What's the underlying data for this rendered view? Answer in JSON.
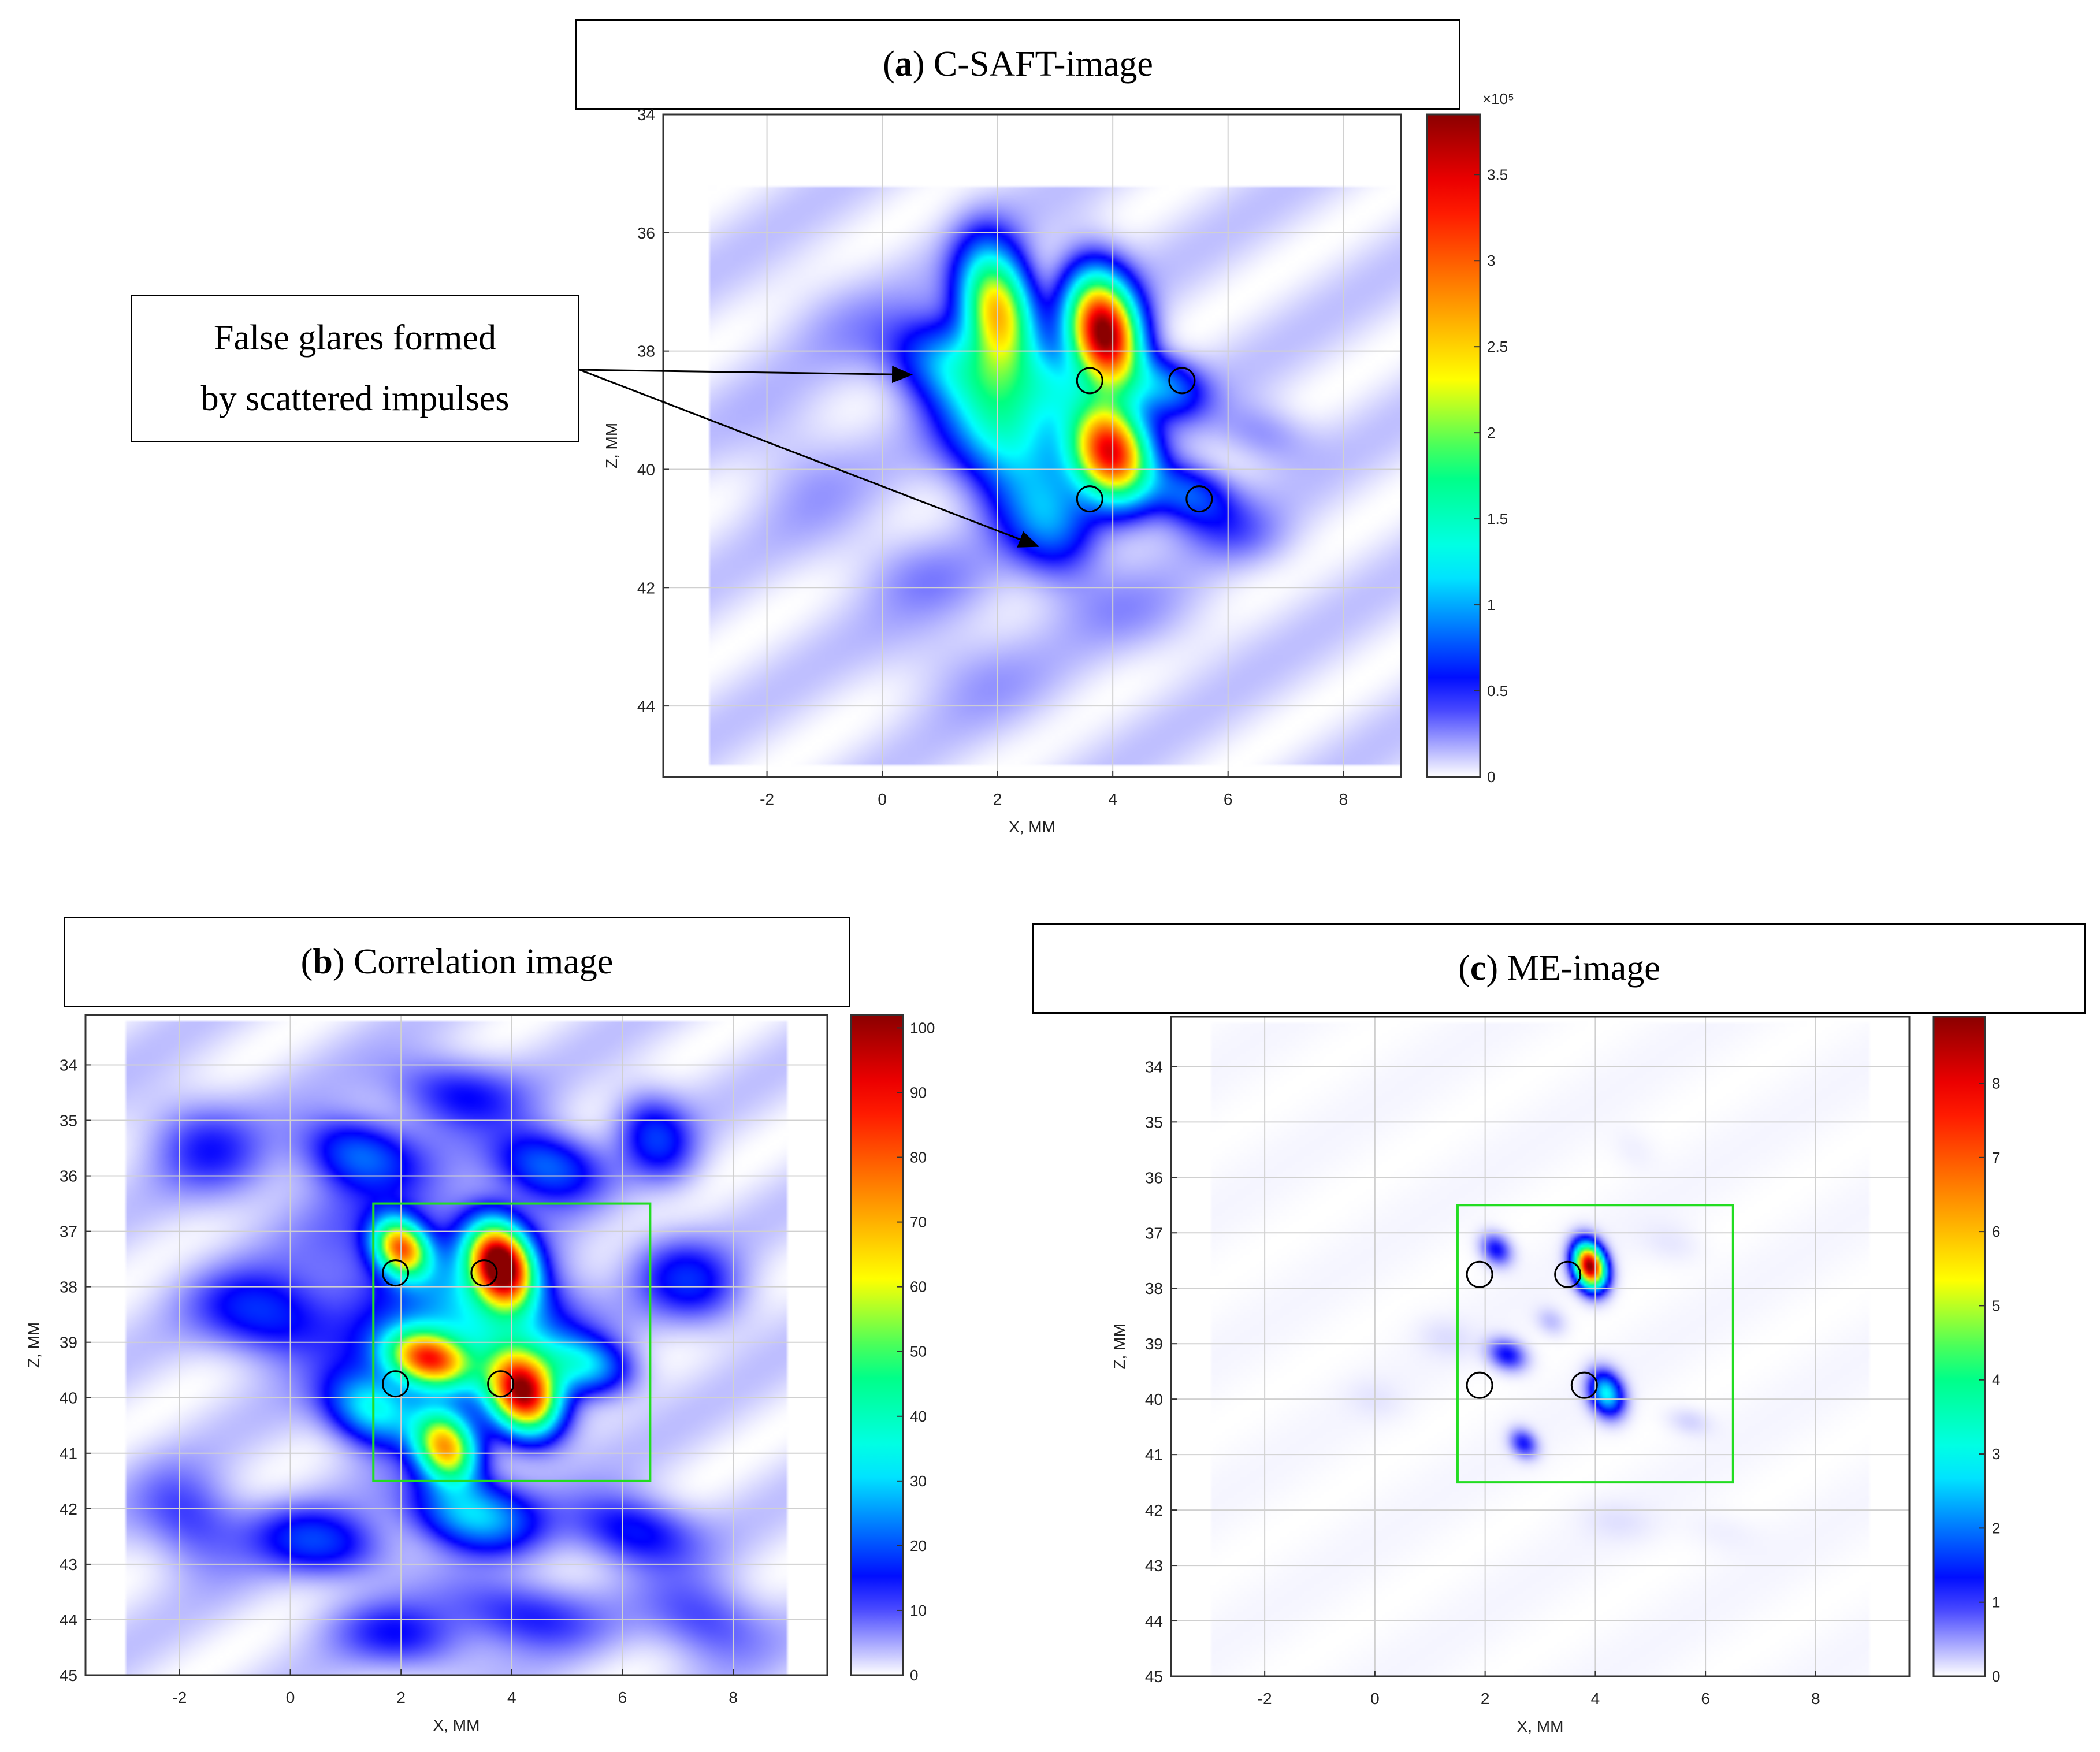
{
  "colors": {
    "grid": "#d0d0d0",
    "roi": "#22dd22",
    "marker": "#000000",
    "arrow": "#000000"
  },
  "colormap": [
    "#ffffff",
    "#0000ff",
    "#00ffff",
    "#00ff80",
    "#ffff00",
    "#ff8000",
    "#ff0000",
    "#8b0000"
  ],
  "panels": {
    "a": {
      "letter": "a",
      "title": "C-SAFT-image",
      "colorbar_exponent": "×10⁵",
      "colorbar_max_label": "3.5"
    },
    "b": {
      "letter": "b",
      "title": "Correlation image"
    },
    "c": {
      "letter": "c",
      "title": "ME-image"
    }
  },
  "callout": {
    "line1": "False glares formed",
    "line2": "by scattered impulses"
  },
  "chart_data": [
    {
      "type": "heatmap",
      "title": "(a) C-SAFT-image",
      "xlabel": "X, MM",
      "ylabel": "Z, MM",
      "xlim": [
        -3.8,
        9
      ],
      "ylim": [
        45.2,
        34
      ],
      "x_ticks": [
        -2,
        0,
        2,
        4,
        6,
        8
      ],
      "y_ticks": [
        34,
        36,
        38,
        40,
        42,
        44
      ],
      "colorbar": {
        "min": 0,
        "max": 3.85,
        "ticks": [
          0,
          0.5,
          1,
          1.5,
          2,
          2.5,
          3,
          3.5
        ],
        "exponent": "×10⁵"
      },
      "markers": [
        [
          3.6,
          38.5
        ],
        [
          5.2,
          38.5
        ],
        [
          3.6,
          40.5
        ],
        [
          5.5,
          40.5
        ]
      ],
      "annotation": "False glares formed by scattered impulses",
      "annotation_targets": [
        [
          0.5,
          38.4
        ],
        [
          2.7,
          41.3
        ]
      ],
      "blobs": [
        {
          "x": 2.0,
          "z": 37.3,
          "sx": 0.45,
          "sz": 0.8,
          "v": 2.5
        },
        {
          "x": 3.85,
          "z": 37.7,
          "sx": 0.45,
          "sz": 0.75,
          "v": 3.85
        },
        {
          "x": 3.95,
          "z": 39.7,
          "sx": 0.5,
          "sz": 0.65,
          "v": 3.3
        },
        {
          "x": 2.1,
          "z": 39.2,
          "sx": 0.75,
          "sz": 0.95,
          "v": 1.4
        },
        {
          "x": 1.1,
          "z": 38.2,
          "sx": 0.7,
          "sz": 0.55,
          "v": 0.8
        },
        {
          "x": 2.9,
          "z": 40.9,
          "sx": 0.6,
          "sz": 0.7,
          "v": 0.75
        },
        {
          "x": 3.0,
          "z": 38.6,
          "sx": 0.45,
          "sz": 0.5,
          "v": 0.6
        },
        {
          "x": 4.9,
          "z": 38.6,
          "sx": 0.5,
          "sz": 0.4,
          "v": 0.8
        },
        {
          "x": 5.3,
          "z": 40.4,
          "sx": 0.55,
          "sz": 0.4,
          "v": 0.7
        },
        {
          "x": 6.0,
          "z": 41.0,
          "sx": 0.7,
          "sz": 0.45,
          "v": 0.25
        },
        {
          "x": 6.6,
          "z": 39.4,
          "sx": 0.6,
          "sz": 0.4,
          "v": 0.22
        },
        {
          "x": 0.7,
          "z": 41.8,
          "sx": 0.9,
          "sz": 0.6,
          "v": 0.15
        },
        {
          "x": -1.4,
          "z": 40.0,
          "sx": 0.8,
          "sz": 0.9,
          "v": 0.12
        },
        {
          "x": 1.5,
          "z": 43.4,
          "sx": 1.0,
          "sz": 0.7,
          "v": 0.12
        },
        {
          "x": 4.3,
          "z": 42.4,
          "sx": 1.0,
          "sz": 0.6,
          "v": 0.12
        },
        {
          "x": -0.5,
          "z": 37.6,
          "sx": 0.9,
          "sz": 0.7,
          "v": 0.1
        }
      ]
    },
    {
      "type": "heatmap",
      "title": "(b) Correlation image",
      "xlabel": "X, MM",
      "ylabel": "Z, MM",
      "xlim": [
        -3.7,
        9.7
      ],
      "ylim": [
        45,
        33.1
      ],
      "x_ticks": [
        -2,
        0,
        2,
        4,
        6,
        8
      ],
      "y_ticks": [
        34,
        35,
        36,
        37,
        38,
        39,
        40,
        41,
        42,
        43,
        44,
        45
      ],
      "colorbar": {
        "min": 0,
        "max": 102,
        "ticks": [
          0,
          10,
          20,
          30,
          40,
          50,
          60,
          70,
          80,
          90,
          100
        ]
      },
      "roi": [
        1.5,
        36.5,
        6.5,
        41.5
      ],
      "markers": [
        [
          1.9,
          37.75
        ],
        [
          3.5,
          37.75
        ],
        [
          1.9,
          39.75
        ],
        [
          3.8,
          39.75
        ]
      ],
      "blobs": [
        {
          "x": 2.0,
          "z": 37.3,
          "sx": 0.35,
          "sz": 0.4,
          "v": 70
        },
        {
          "x": 3.8,
          "z": 37.6,
          "sx": 0.4,
          "sz": 0.55,
          "v": 102
        },
        {
          "x": 2.5,
          "z": 39.3,
          "sx": 0.55,
          "sz": 0.4,
          "v": 75
        },
        {
          "x": 4.2,
          "z": 39.9,
          "sx": 0.45,
          "sz": 0.55,
          "v": 90
        },
        {
          "x": 2.8,
          "z": 40.9,
          "sx": 0.4,
          "sz": 0.5,
          "v": 65
        },
        {
          "x": 1.5,
          "z": 40.2,
          "sx": 0.6,
          "sz": 0.5,
          "v": 30
        },
        {
          "x": 3.3,
          "z": 42.1,
          "sx": 0.8,
          "sz": 0.5,
          "v": 28
        },
        {
          "x": 5.3,
          "z": 39.4,
          "sx": 0.6,
          "sz": 0.4,
          "v": 25
        },
        {
          "x": 4.6,
          "z": 35.8,
          "sx": 0.7,
          "sz": 0.5,
          "v": 20
        },
        {
          "x": 1.2,
          "z": 35.6,
          "sx": 0.7,
          "sz": 0.5,
          "v": 18
        },
        {
          "x": 6.6,
          "z": 35.3,
          "sx": 0.5,
          "sz": 0.6,
          "v": 15
        },
        {
          "x": -0.5,
          "z": 38.5,
          "sx": 0.9,
          "sz": 0.6,
          "v": 15
        },
        {
          "x": 0.5,
          "z": 42.6,
          "sx": 0.9,
          "sz": 0.5,
          "v": 16
        },
        {
          "x": 6.2,
          "z": 42.4,
          "sx": 0.8,
          "sz": 0.5,
          "v": 15
        },
        {
          "x": 7.2,
          "z": 37.9,
          "sx": 0.7,
          "sz": 0.6,
          "v": 14
        },
        {
          "x": 3.0,
          "z": 34.5,
          "sx": 0.9,
          "sz": 0.5,
          "v": 12
        },
        {
          "x": -1.5,
          "z": 35.5,
          "sx": 0.8,
          "sz": 0.7,
          "v": 10
        },
        {
          "x": 7.5,
          "z": 44.0,
          "sx": 0.8,
          "sz": 0.6,
          "v": 10
        },
        {
          "x": 2.0,
          "z": 44.3,
          "sx": 0.9,
          "sz": 0.5,
          "v": 11
        },
        {
          "x": 4.2,
          "z": 43.9,
          "sx": 1.0,
          "sz": 0.5,
          "v": 12
        },
        {
          "x": -1.8,
          "z": 42.2,
          "sx": 0.7,
          "sz": 0.7,
          "v": 10
        },
        {
          "x": 3.8,
          "z": 38.6,
          "sx": 0.9,
          "sz": 0.9,
          "v": 22
        },
        {
          "x": 2.5,
          "z": 38.3,
          "sx": 1.6,
          "sz": 1.8,
          "v": 13
        }
      ]
    },
    {
      "type": "heatmap",
      "title": "(c) ME-image",
      "xlabel": "X, MM",
      "ylabel": "Z, MM",
      "xlim": [
        -3.7,
        9.7
      ],
      "ylim": [
        45,
        33.1
      ],
      "x_ticks": [
        -2,
        0,
        2,
        4,
        6,
        8
      ],
      "y_ticks": [
        34,
        35,
        36,
        37,
        38,
        39,
        40,
        41,
        42,
        43,
        44,
        45
      ],
      "colorbar": {
        "min": 0,
        "max": 8.9,
        "ticks": [
          0,
          1,
          2,
          3,
          4,
          5,
          6,
          7,
          8
        ]
      },
      "roi": [
        1.5,
        36.5,
        6.5,
        41.5
      ],
      "markers": [
        [
          1.9,
          37.75
        ],
        [
          3.5,
          37.75
        ],
        [
          1.9,
          39.75
        ],
        [
          3.8,
          39.75
        ]
      ],
      "blobs": [
        {
          "x": 2.2,
          "z": 37.3,
          "sx": 0.2,
          "sz": 0.22,
          "v": 1.2
        },
        {
          "x": 3.9,
          "z": 37.6,
          "sx": 0.2,
          "sz": 0.3,
          "v": 8.9
        },
        {
          "x": 2.4,
          "z": 39.2,
          "sx": 0.25,
          "sz": 0.22,
          "v": 1.2
        },
        {
          "x": 4.2,
          "z": 39.9,
          "sx": 0.22,
          "sz": 0.3,
          "v": 2.8
        },
        {
          "x": 2.7,
          "z": 40.8,
          "sx": 0.18,
          "sz": 0.2,
          "v": 1.1
        },
        {
          "x": 5.7,
          "z": 40.4,
          "sx": 0.3,
          "sz": 0.2,
          "v": 0.2
        },
        {
          "x": 3.2,
          "z": 38.6,
          "sx": 0.2,
          "sz": 0.2,
          "v": 0.3
        },
        {
          "x": 1.3,
          "z": 38.9,
          "sx": 0.4,
          "sz": 0.3,
          "v": 0.12
        },
        {
          "x": 5.4,
          "z": 37.2,
          "sx": 0.4,
          "sz": 0.3,
          "v": 0.1
        },
        {
          "x": 4.4,
          "z": 42.2,
          "sx": 0.5,
          "sz": 0.3,
          "v": 0.1
        },
        {
          "x": 0.0,
          "z": 40.0,
          "sx": 0.4,
          "sz": 0.3,
          "v": 0.08
        },
        {
          "x": 6.3,
          "z": 42.4,
          "sx": 0.5,
          "sz": 0.3,
          "v": 0.07
        },
        {
          "x": 4.7,
          "z": 35.5,
          "sx": 0.3,
          "sz": 0.3,
          "v": 0.07
        }
      ]
    }
  ]
}
